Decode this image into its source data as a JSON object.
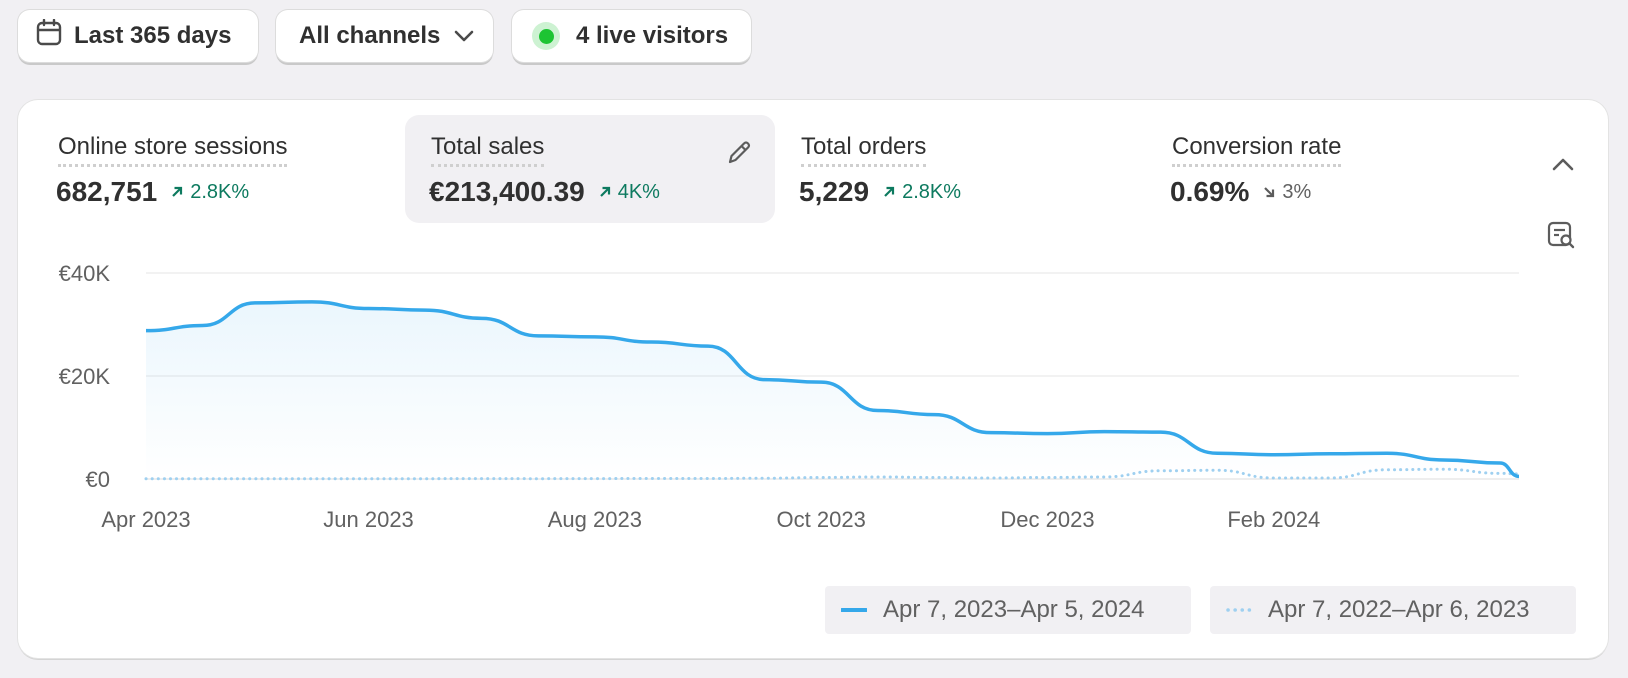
{
  "filters": {
    "date_range": "Last 365 days",
    "channels": "All channels",
    "live_visitors": "4 live visitors"
  },
  "metrics": [
    {
      "label": "Online store sessions",
      "value": "682,751",
      "delta": "2.8K%",
      "direction": "up"
    },
    {
      "label": "Total sales",
      "value": "€213,400.39",
      "delta": "4K%",
      "direction": "up"
    },
    {
      "label": "Total orders",
      "value": "5,229",
      "delta": "2.8K%",
      "direction": "up"
    },
    {
      "label": "Conversion rate",
      "value": "0.69%",
      "delta": "3%",
      "direction": "down"
    }
  ],
  "colors": {
    "current_series": "#35a8ea",
    "previous_series": "#9fd0f0",
    "positive_delta": "#0d7a5f",
    "live_dot": "#1dc433"
  },
  "icons": {
    "date": "calendar-icon",
    "channels": "chevron-down-icon",
    "edit": "pencil-icon",
    "collapse": "chevron-up-icon",
    "chart_options": "chart-search-icon"
  },
  "legend": {
    "current": "Apr 7, 2023–Apr 5, 2024",
    "previous": "Apr 7, 2022–Apr 6, 2023"
  },
  "chart_data": {
    "type": "line",
    "x": [
      "2023-04-07",
      "2023-04-22",
      "2023-05-06",
      "2023-05-21",
      "2023-06-05",
      "2023-06-20",
      "2023-07-05",
      "2023-07-20",
      "2023-08-04",
      "2023-08-19",
      "2023-09-03",
      "2023-09-18",
      "2023-10-03",
      "2023-10-18",
      "2023-11-02",
      "2023-11-17",
      "2023-12-02",
      "2023-12-17",
      "2024-01-01",
      "2024-01-16",
      "2024-01-31",
      "2024-02-15",
      "2024-03-01",
      "2024-03-16",
      "2024-03-31",
      "2024-04-05"
    ],
    "series": [
      {
        "name": "Apr 7, 2023–Apr 5, 2024",
        "style": "solid",
        "values": [
          28800,
          29800,
          34200,
          34400,
          33100,
          32800,
          31200,
          27800,
          27600,
          26600,
          25800,
          19300,
          18800,
          13300,
          12500,
          9000,
          8800,
          9200,
          9100,
          5000,
          4700,
          4900,
          5000,
          3700,
          3100,
          500
        ]
      },
      {
        "name": "Apr 7, 2022–Apr 6, 2023",
        "style": "dotted",
        "values": [
          50,
          50,
          60,
          50,
          60,
          60,
          70,
          60,
          80,
          100,
          100,
          150,
          300,
          400,
          300,
          200,
          300,
          400,
          1600,
          1700,
          200,
          200,
          1800,
          1900,
          1100,
          1000
        ]
      }
    ],
    "x_ticks": [
      "Apr 2023",
      "Jun 2023",
      "Aug 2023",
      "Oct 2023",
      "Dec 2023",
      "Feb 2024"
    ],
    "x_tick_values": [
      "2023-04-07",
      "2023-06-05",
      "2023-08-04",
      "2023-10-03",
      "2023-12-02",
      "2024-01-31"
    ],
    "y_ticks": [
      "€40K",
      "€20K",
      "€0"
    ],
    "y_tick_values": [
      40000,
      20000,
      0
    ],
    "ylim": [
      0,
      40000
    ],
    "grid": true,
    "legend_position": "bottom-right"
  }
}
